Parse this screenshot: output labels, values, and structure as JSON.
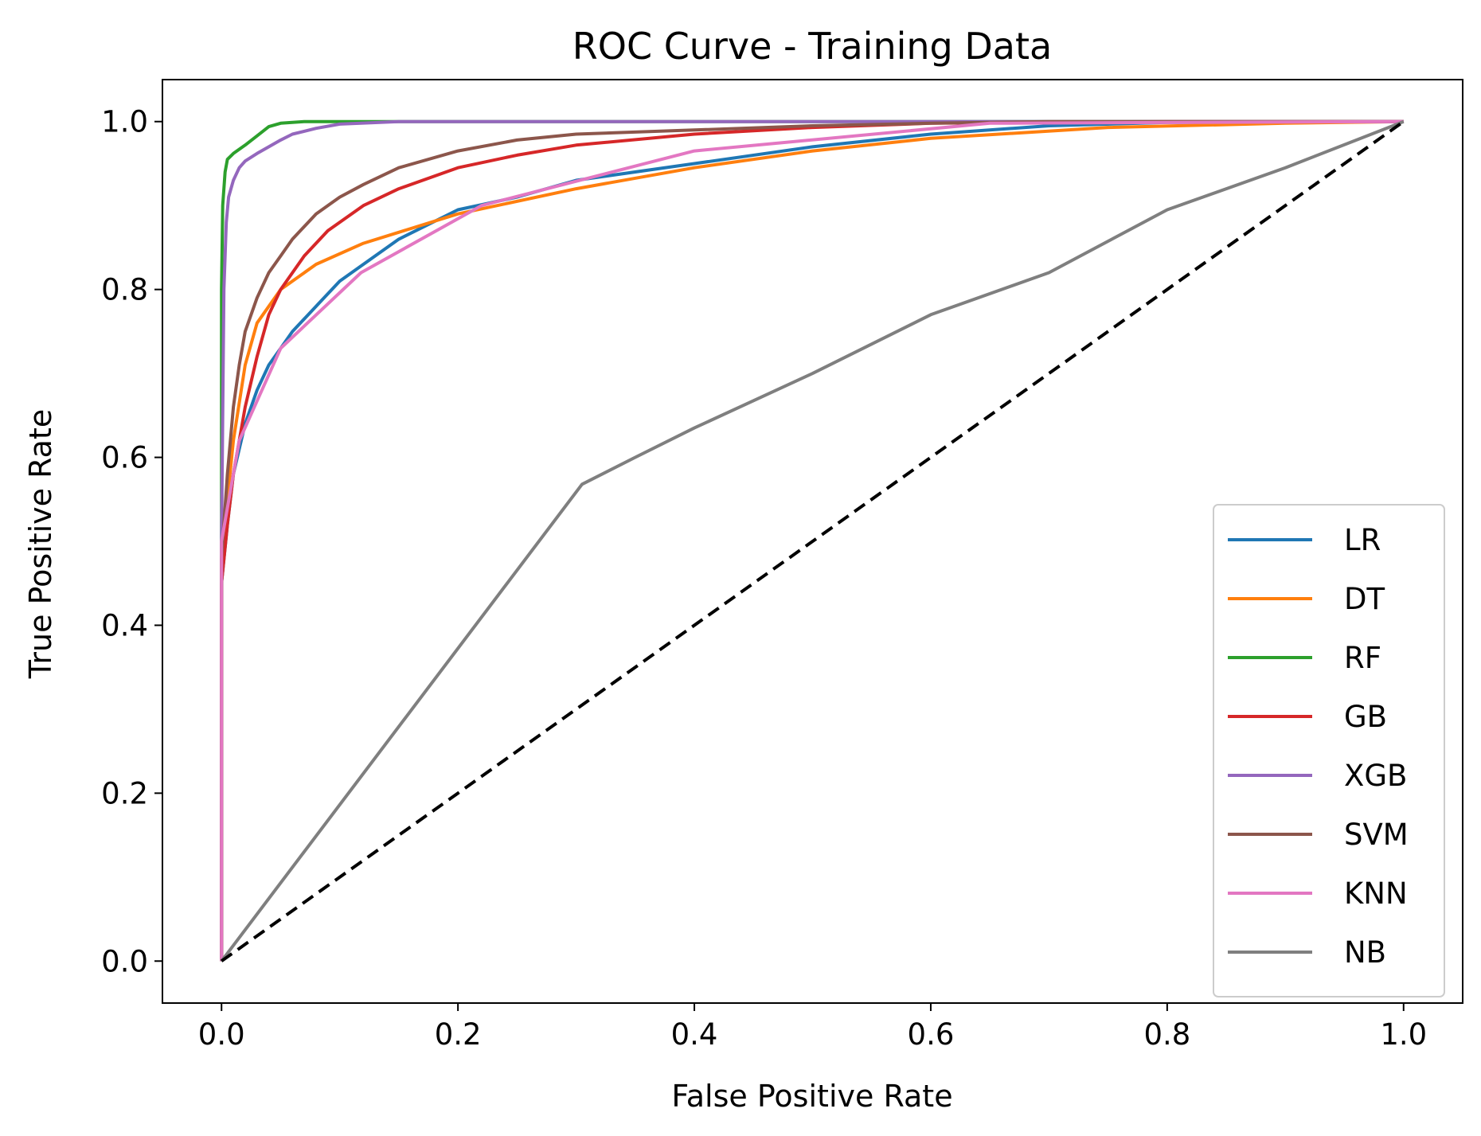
{
  "chart_data": {
    "type": "line",
    "title": "ROC Curve - Training Data",
    "xlabel": "False Positive Rate",
    "ylabel": "True Positive Rate",
    "xlim": [
      -0.05,
      1.05
    ],
    "ylim": [
      -0.05,
      1.05
    ],
    "xticks": [
      "0.0",
      "0.2",
      "0.4",
      "0.6",
      "0.8",
      "1.0"
    ],
    "yticks": [
      "0.0",
      "0.2",
      "0.4",
      "0.6",
      "0.8",
      "1.0"
    ],
    "grid": false,
    "legend_position": "lower-right",
    "series": [
      {
        "name": "LR",
        "color": "#1f77b4",
        "x": [
          0,
          0,
          0.005,
          0.01,
          0.02,
          0.03,
          0.04,
          0.05,
          0.06,
          0.08,
          0.1,
          0.12,
          0.15,
          0.2,
          0.25,
          0.3,
          0.4,
          0.5,
          0.6,
          0.7,
          0.8,
          1.0
        ],
        "y": [
          0,
          0.45,
          0.52,
          0.58,
          0.64,
          0.68,
          0.71,
          0.73,
          0.75,
          0.78,
          0.81,
          0.83,
          0.86,
          0.895,
          0.91,
          0.93,
          0.95,
          0.97,
          0.985,
          0.995,
          0.999,
          1.0
        ]
      },
      {
        "name": "DT",
        "color": "#ff7f0e",
        "x": [
          0,
          0,
          0.005,
          0.01,
          0.02,
          0.03,
          0.05,
          0.08,
          0.12,
          0.2,
          0.3,
          0.4,
          0.5,
          0.6,
          0.75,
          0.9,
          1.0
        ],
        "y": [
          0,
          0.45,
          0.55,
          0.62,
          0.71,
          0.76,
          0.8,
          0.83,
          0.855,
          0.89,
          0.92,
          0.945,
          0.965,
          0.98,
          0.993,
          0.998,
          1.0
        ]
      },
      {
        "name": "RF",
        "color": "#2ca02c",
        "x": [
          0,
          0,
          0.001,
          0.003,
          0.005,
          0.01,
          0.02,
          0.03,
          0.04,
          0.05,
          0.07,
          0.1,
          1.0
        ],
        "y": [
          0,
          0.8,
          0.9,
          0.94,
          0.955,
          0.962,
          0.972,
          0.983,
          0.994,
          0.998,
          1.0,
          1.0,
          1.0
        ]
      },
      {
        "name": "GB",
        "color": "#d62728",
        "x": [
          0,
          0,
          0.005,
          0.01,
          0.02,
          0.03,
          0.04,
          0.05,
          0.07,
          0.09,
          0.12,
          0.15,
          0.2,
          0.25,
          0.3,
          0.4,
          0.5,
          0.6,
          0.8,
          1.0
        ],
        "y": [
          0,
          0.45,
          0.52,
          0.58,
          0.66,
          0.72,
          0.77,
          0.8,
          0.84,
          0.87,
          0.9,
          0.92,
          0.945,
          0.96,
          0.972,
          0.985,
          0.993,
          0.998,
          1.0,
          1.0
        ]
      },
      {
        "name": "XGB",
        "color": "#9467bd",
        "x": [
          0,
          0,
          0.002,
          0.004,
          0.006,
          0.01,
          0.015,
          0.02,
          0.03,
          0.04,
          0.05,
          0.06,
          0.08,
          0.1,
          0.15,
          1.0
        ],
        "y": [
          0,
          0.5,
          0.8,
          0.88,
          0.91,
          0.93,
          0.945,
          0.953,
          0.962,
          0.97,
          0.978,
          0.985,
          0.992,
          0.997,
          1.0,
          1.0
        ]
      },
      {
        "name": "SVM",
        "color": "#8c564b",
        "x": [
          0,
          0,
          0.005,
          0.01,
          0.015,
          0.02,
          0.03,
          0.04,
          0.05,
          0.06,
          0.08,
          0.1,
          0.12,
          0.15,
          0.2,
          0.25,
          0.3,
          0.4,
          0.5,
          0.6,
          0.7,
          1.0
        ],
        "y": [
          0,
          0.48,
          0.58,
          0.66,
          0.71,
          0.75,
          0.79,
          0.82,
          0.84,
          0.86,
          0.89,
          0.91,
          0.925,
          0.945,
          0.965,
          0.978,
          0.985,
          0.99,
          0.995,
          0.998,
          1.0,
          1.0
        ]
      },
      {
        "name": "KNN",
        "color": "#e377c2",
        "x": [
          0,
          0,
          0.015,
          0.05,
          0.118,
          0.22,
          0.4,
          0.65,
          1.0
        ],
        "y": [
          0,
          0.5,
          0.62,
          0.73,
          0.82,
          0.9,
          0.965,
          0.998,
          1.0
        ]
      },
      {
        "name": "NB",
        "color": "#7f7f7f",
        "x": [
          0,
          0.305,
          0.35,
          0.4,
          0.5,
          0.6,
          0.7,
          0.8,
          0.9,
          1.0
        ],
        "y": [
          0,
          0.568,
          0.6,
          0.635,
          0.7,
          0.77,
          0.82,
          0.895,
          0.945,
          1.0
        ]
      },
      {
        "name": "",
        "color": "#000000",
        "dashed": true,
        "x": [
          0,
          1
        ],
        "y": [
          0,
          1
        ]
      }
    ]
  }
}
